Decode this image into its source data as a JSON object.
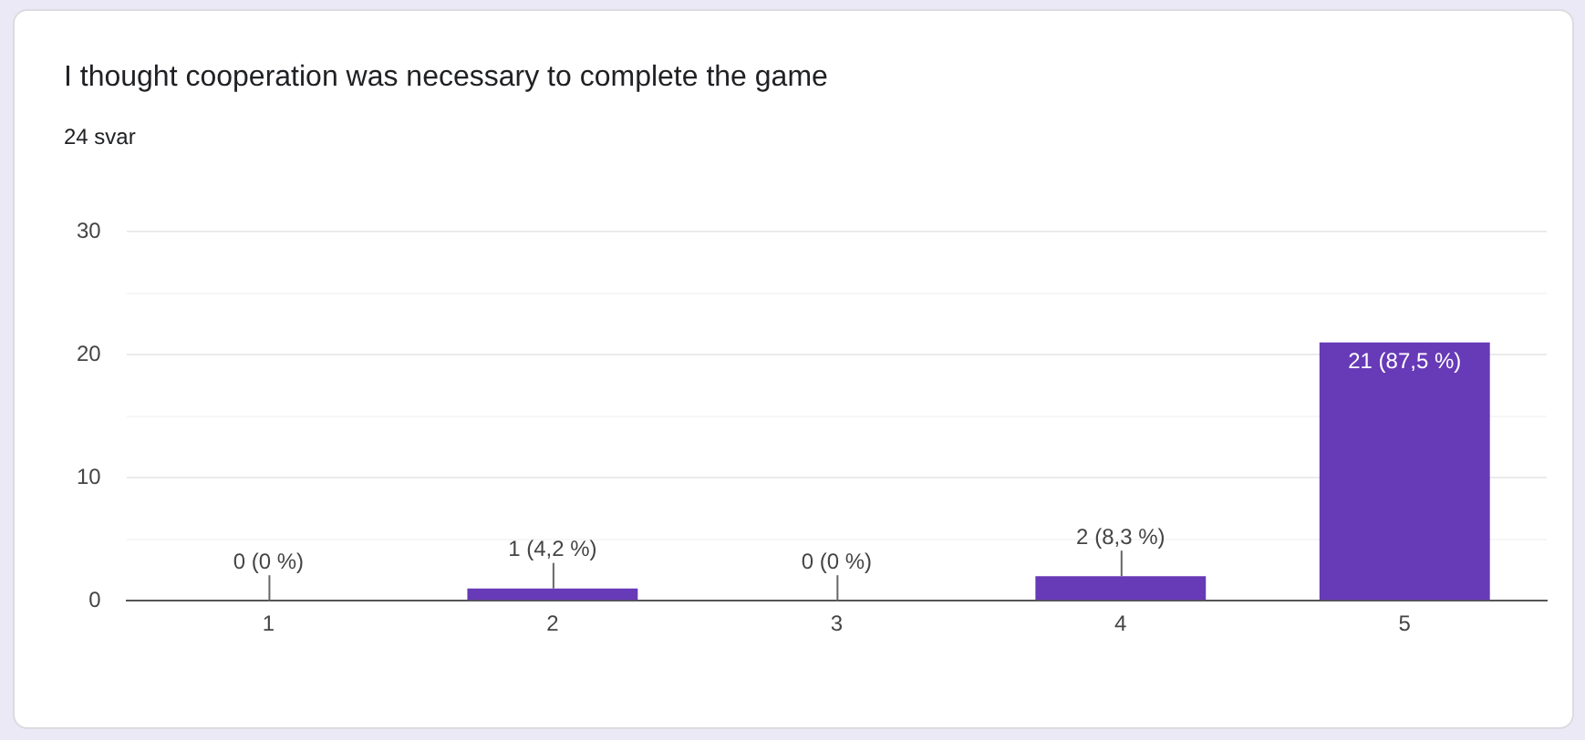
{
  "chart_data": {
    "type": "bar",
    "title": "I thought cooperation was necessary to complete the game",
    "subtitle": "24 svar",
    "categories": [
      "1",
      "2",
      "3",
      "4",
      "5"
    ],
    "values": [
      0,
      1,
      0,
      2,
      21
    ],
    "color": "#673ab7",
    "value_labels": [
      "0 (0 %)",
      "1 (4,2 %)",
      "0 (0 %)",
      "2 (8,3 %)",
      "21 (87,5 %)"
    ],
    "ylim": [
      0,
      30
    ],
    "yticks": [
      0,
      {
        "value": 5,
        "label": null
      },
      10,
      {
        "value": 15,
        "label": null
      },
      20,
      {
        "value": 25,
        "label": null
      },
      30
    ],
    "grid": "y"
  }
}
